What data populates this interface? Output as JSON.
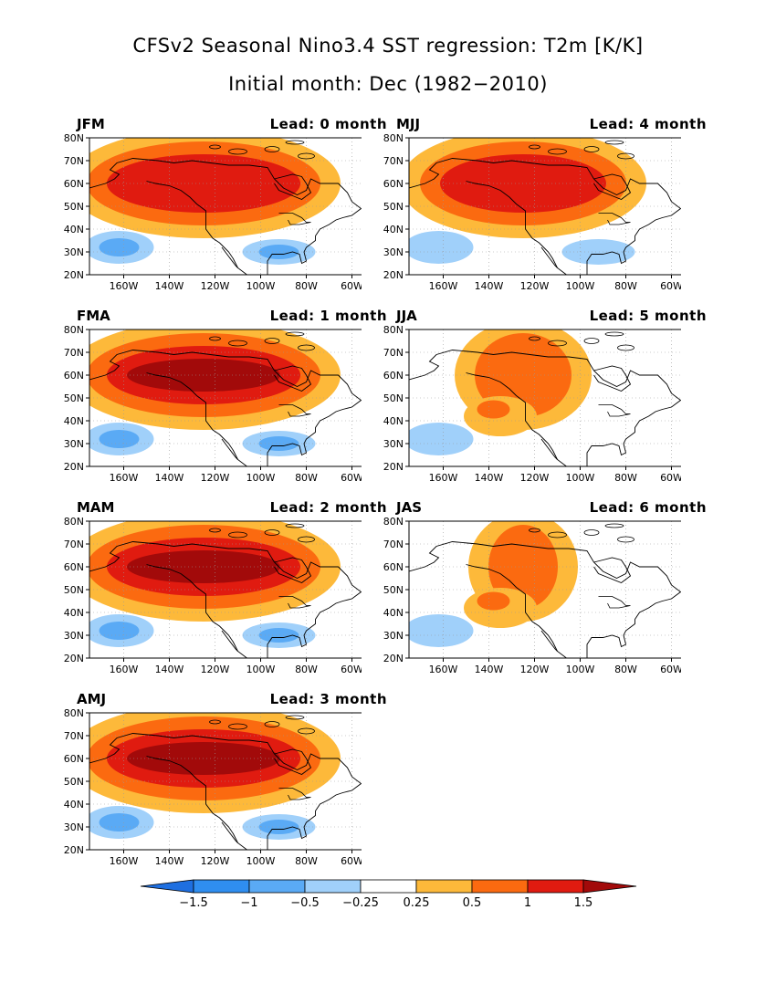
{
  "figure": {
    "title_line1": "CFSv2 Seasonal Nino3.4 SST regression: T2m [K/K]",
    "title_line2": "Initial month: Dec (1982−2010)"
  },
  "axes": {
    "lat_labels": [
      "80N",
      "70N",
      "60N",
      "50N",
      "40N",
      "30N",
      "20N"
    ],
    "lon_labels": [
      "160W",
      "140W",
      "120W",
      "100W",
      "80W",
      "60W"
    ],
    "lat_range": [
      20,
      80
    ],
    "lon_range": [
      -175,
      -55
    ]
  },
  "panels": [
    {
      "season": "JFM",
      "lead": "Lead: 0 month",
      "north_max": 1.4,
      "south_min": -0.6,
      "warm_extent": 1.0
    },
    {
      "season": "MJJ",
      "lead": "Lead: 4 month",
      "north_max": 1.2,
      "south_min": -0.4,
      "warm_extent": 0.9
    },
    {
      "season": "FMA",
      "lead": "Lead: 1 month",
      "north_max": 1.6,
      "south_min": -0.7,
      "warm_extent": 1.0
    },
    {
      "season": "JJA",
      "lead": "Lead: 5 month",
      "north_max": 0.9,
      "south_min": -0.3,
      "warm_extent": 0.5
    },
    {
      "season": "MAM",
      "lead": "Lead: 2 month",
      "north_max": 1.7,
      "south_min": -0.6,
      "warm_extent": 1.0
    },
    {
      "season": "JAS",
      "lead": "Lead: 6 month",
      "north_max": 0.7,
      "south_min": -0.3,
      "warm_extent": 0.4
    },
    {
      "season": "AMJ",
      "lead": "Lead: 3 month",
      "north_max": 1.6,
      "south_min": -0.5,
      "warm_extent": 1.0
    }
  ],
  "colorbar": {
    "labels": [
      "−1.5",
      "−1",
      "−0.5",
      "−0.25",
      "0.25",
      "0.5",
      "1",
      "1.5"
    ],
    "colors": [
      "#1e6fe0",
      "#2f8ef0",
      "#5aaaf5",
      "#a0d0fa",
      "#ffffff",
      "#fdb93a",
      "#fb6a10",
      "#e01b10",
      "#a20a0a"
    ]
  }
}
